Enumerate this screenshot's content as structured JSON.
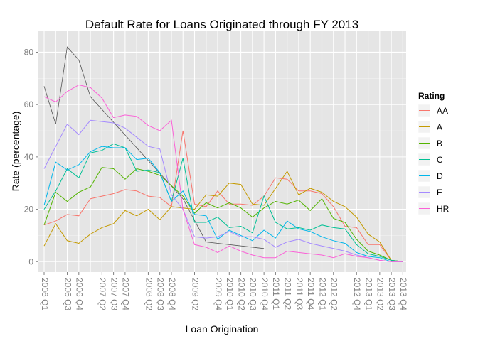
{
  "chart_data": {
    "type": "line",
    "title": "Default Rate for Loans Originated through FY 2013",
    "xlabel": "Loan Origination",
    "ylabel": "Rate (percentage)",
    "ylim": [
      -4,
      88
    ],
    "yticks": [
      0,
      20,
      40,
      60,
      80
    ],
    "grid": true,
    "legend_title": "Rating",
    "legend_position": "right",
    "x": [
      "2006 Q1",
      "2006 Q2",
      "2006 Q3",
      "2006 Q4",
      "2007 Q1",
      "2007 Q2",
      "2007 Q3",
      "2007 Q4",
      "2008 Q1",
      "2008 Q2",
      "2008 Q3",
      "2008 Q4",
      "2009 Q1",
      "2009 Q2",
      "2009 Q3",
      "2009 Q4",
      "2010 Q1",
      "2010 Q2",
      "2010 Q3",
      "2010 Q4",
      "2011 Q1",
      "2011 Q2",
      "2011 Q3",
      "2011 Q4",
      "2012 Q1",
      "2012 Q2",
      "2012 Q3",
      "2012 Q4",
      "2013 Q1",
      "2013 Q2",
      "2013 Q3",
      "2013 Q4"
    ],
    "x_tick_labels": [
      "2006 Q1",
      "2006 Q3",
      "2006 Q4",
      "2007 Q2",
      "2007 Q3",
      "2007 Q4",
      "2008 Q2",
      "2008 Q3",
      "2008 Q4",
      "2009 Q2",
      "2009 Q4",
      "2010 Q1",
      "2010 Q2",
      "2010 Q3",
      "2010 Q4",
      "2011 Q1",
      "2011 Q2",
      "2011 Q3",
      "2011 Q4",
      "2012 Q1",
      "2012 Q2",
      "2012 Q4",
      "2013 Q1",
      "2013 Q2",
      "2013 Q3",
      "2013 Q4"
    ],
    "series": [
      {
        "name": "AA",
        "color": "#F8766D",
        "values": [
          14,
          15.5,
          18,
          17.5,
          24,
          25,
          26,
          27.5,
          27,
          25,
          24.5,
          21,
          50,
          22,
          21,
          27,
          22,
          22,
          21.5,
          25,
          32,
          31.5,
          27,
          27,
          26,
          21,
          13.5,
          13,
          6.5,
          6.5,
          0.5,
          0
        ]
      },
      {
        "name": "A",
        "color": "#C49A00",
        "values": [
          6,
          14.5,
          8,
          7,
          10.5,
          13,
          14.5,
          19.5,
          17.5,
          20,
          16,
          21,
          20.5,
          20,
          25.5,
          25,
          30,
          29.5,
          22,
          21.5,
          28,
          34.5,
          25.5,
          28,
          26.5,
          23,
          21,
          17,
          10.5,
          7.5,
          0.5,
          0
        ]
      },
      {
        "name": "B",
        "color": "#53B400",
        "values": [
          14,
          26.5,
          23,
          26.5,
          28.5,
          36,
          35.5,
          31.5,
          35.5,
          34.5,
          33,
          29,
          25,
          18.5,
          22.5,
          20.5,
          22.5,
          20.5,
          17,
          20.5,
          23,
          22,
          23.5,
          19.5,
          24,
          16.5,
          15,
          8.5,
          4,
          2.5,
          0.5,
          0
        ]
      },
      {
        "name": "C",
        "color": "#00C094",
        "values": [
          20,
          27,
          35.5,
          32,
          41.5,
          42.5,
          45,
          43.5,
          34.5,
          35,
          34,
          23,
          39.5,
          15,
          15,
          17,
          13,
          13.5,
          11,
          25,
          15,
          12.5,
          13,
          12,
          14,
          13,
          12.5,
          6.5,
          3,
          2,
          0.5,
          0
        ]
      },
      {
        "name": "D",
        "color": "#00B6EB",
        "values": [
          21.5,
          38,
          35,
          37,
          42,
          44,
          43.5,
          43.5,
          39,
          39.5,
          34,
          23,
          27,
          18,
          17.5,
          8.5,
          12,
          10,
          8,
          12,
          9,
          15.5,
          12.5,
          11.5,
          9.5,
          8,
          7,
          3.5,
          2,
          1.5,
          0,
          0
        ]
      },
      {
        "name": "E",
        "color": "#A58AFF",
        "values": [
          35.5,
          44,
          52.5,
          48.5,
          54,
          53.5,
          53,
          51,
          47.5,
          44,
          43,
          25.5,
          20,
          9.5,
          9,
          9.5,
          11.5,
          9.5,
          9.5,
          8.5,
          5.5,
          7.5,
          8.5,
          7,
          6,
          5,
          4,
          2.5,
          1.5,
          0.5,
          0,
          0
        ]
      },
      {
        "name": "HR",
        "color": "#FB61D7",
        "values": [
          63,
          61,
          65,
          67.5,
          66.5,
          62.5,
          55,
          56,
          55.5,
          52,
          50,
          54,
          20,
          6.5,
          5.5,
          3.5,
          6,
          4,
          2.5,
          1.5,
          1.5,
          4,
          3.5,
          3,
          2.5,
          1.5,
          3,
          2,
          1.5,
          0.5,
          0,
          0
        ]
      }
    ],
    "extra_lines": [
      {
        "color": "#555555",
        "points": [
          [
            0,
            67
          ],
          [
            1,
            52.5
          ],
          [
            2,
            82
          ],
          [
            3,
            77
          ],
          [
            4,
            63
          ],
          [
            12,
            24
          ],
          [
            14,
            7.5
          ],
          [
            19,
            5
          ]
        ]
      }
    ]
  }
}
